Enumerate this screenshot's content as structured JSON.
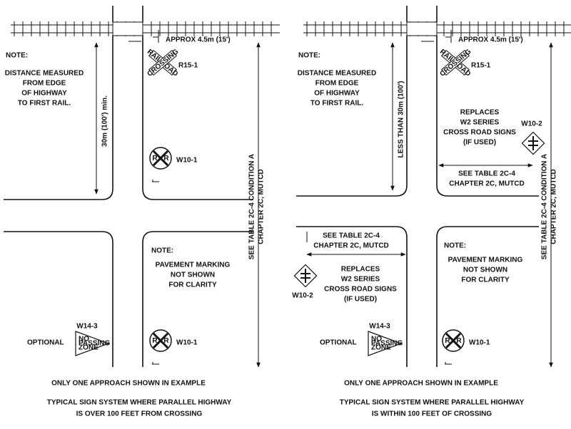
{
  "left": {
    "approx": "APPROX 4.5m (15')",
    "crossbuck_sign": "R15-1",
    "crossbuck_text": [
      "RAILROAD",
      "CROSSING"
    ],
    "edge_note": {
      "title": "NOTE:",
      "lines": [
        "DISTANCE MEASURED",
        "FROM EDGE",
        "OF HIGHWAY",
        "TO FIRST RAIL."
      ]
    },
    "distance": "30m (100') min.",
    "advance_sign_letter": "R",
    "advance_sign_upper": "W10-1",
    "table_ref": [
      "SEE TABLE 2C-4 CONDITION A",
      "CHAPTER 2C, MUTCD"
    ],
    "pavement_note": {
      "title": "NOTE:",
      "lines": [
        "PAVEMENT MARKING",
        "NOT SHOWN",
        "FOR CLARITY"
      ]
    },
    "pennant_sign": "W14-3",
    "pennant_text": [
      "NO",
      "PASSING",
      "ZONE"
    ],
    "optional": "OPTIONAL",
    "advance_sign_lower": "W10-1",
    "footnote": "ONLY ONE APPROACH SHOWN IN EXAMPLE",
    "caption": [
      "TYPICAL SIGN SYSTEM WHERE PARALLEL HIGHWAY",
      "IS OVER 100 FEET FROM CROSSING"
    ]
  },
  "right": {
    "approx": "APPROX 4.5m (15')",
    "crossbuck_sign": "R15-1",
    "crossbuck_text": [
      "RAILROAD",
      "CROSSING"
    ],
    "edge_note": {
      "title": "NOTE:",
      "lines": [
        "DISTANCE MEASURED",
        "FROM EDGE",
        "OF HIGHWAY",
        "TO FIRST RAIL."
      ]
    },
    "distance": "LESS THAN 30m (100')",
    "replaces_upper": {
      "lines": [
        "REPLACES",
        "W2 SERIES",
        "CROSS ROAD SIGNS",
        "(IF USED)"
      ],
      "sign": "W10-2"
    },
    "table_ref_upper": [
      "SEE TABLE 2C-4",
      "CHAPTER 2C, MUTCD"
    ],
    "table_ref": [
      "SEE TABLE 2C-4 CONDITION A",
      "CHAPTER 2C, MUTCD"
    ],
    "table_ref_left": [
      "SEE TABLE 2C-4",
      "CHAPTER 2C, MUTCD"
    ],
    "replaces_left": {
      "lines": [
        "REPLACES",
        "W2 SERIES",
        "CROSS ROAD SIGNS",
        "(IF USED)"
      ],
      "sign": "W10-2"
    },
    "pavement_note": {
      "title": "NOTE:",
      "lines": [
        "PAVEMENT MARKING",
        "NOT SHOWN",
        "FOR CLARITY"
      ]
    },
    "pennant_sign": "W14-3",
    "pennant_text": [
      "NO",
      "PASSING",
      "ZONE"
    ],
    "optional": "OPTIONAL",
    "advance_sign_letter": "R",
    "advance_sign_lower": "W10-1",
    "footnote": "ONLY ONE APPROACH SHOWN IN EXAMPLE",
    "caption": [
      "TYPICAL SIGN SYSTEM WHERE PARALLEL HIGHWAY",
      "IS WITHIN 100 FEET OF CROSSING"
    ]
  }
}
